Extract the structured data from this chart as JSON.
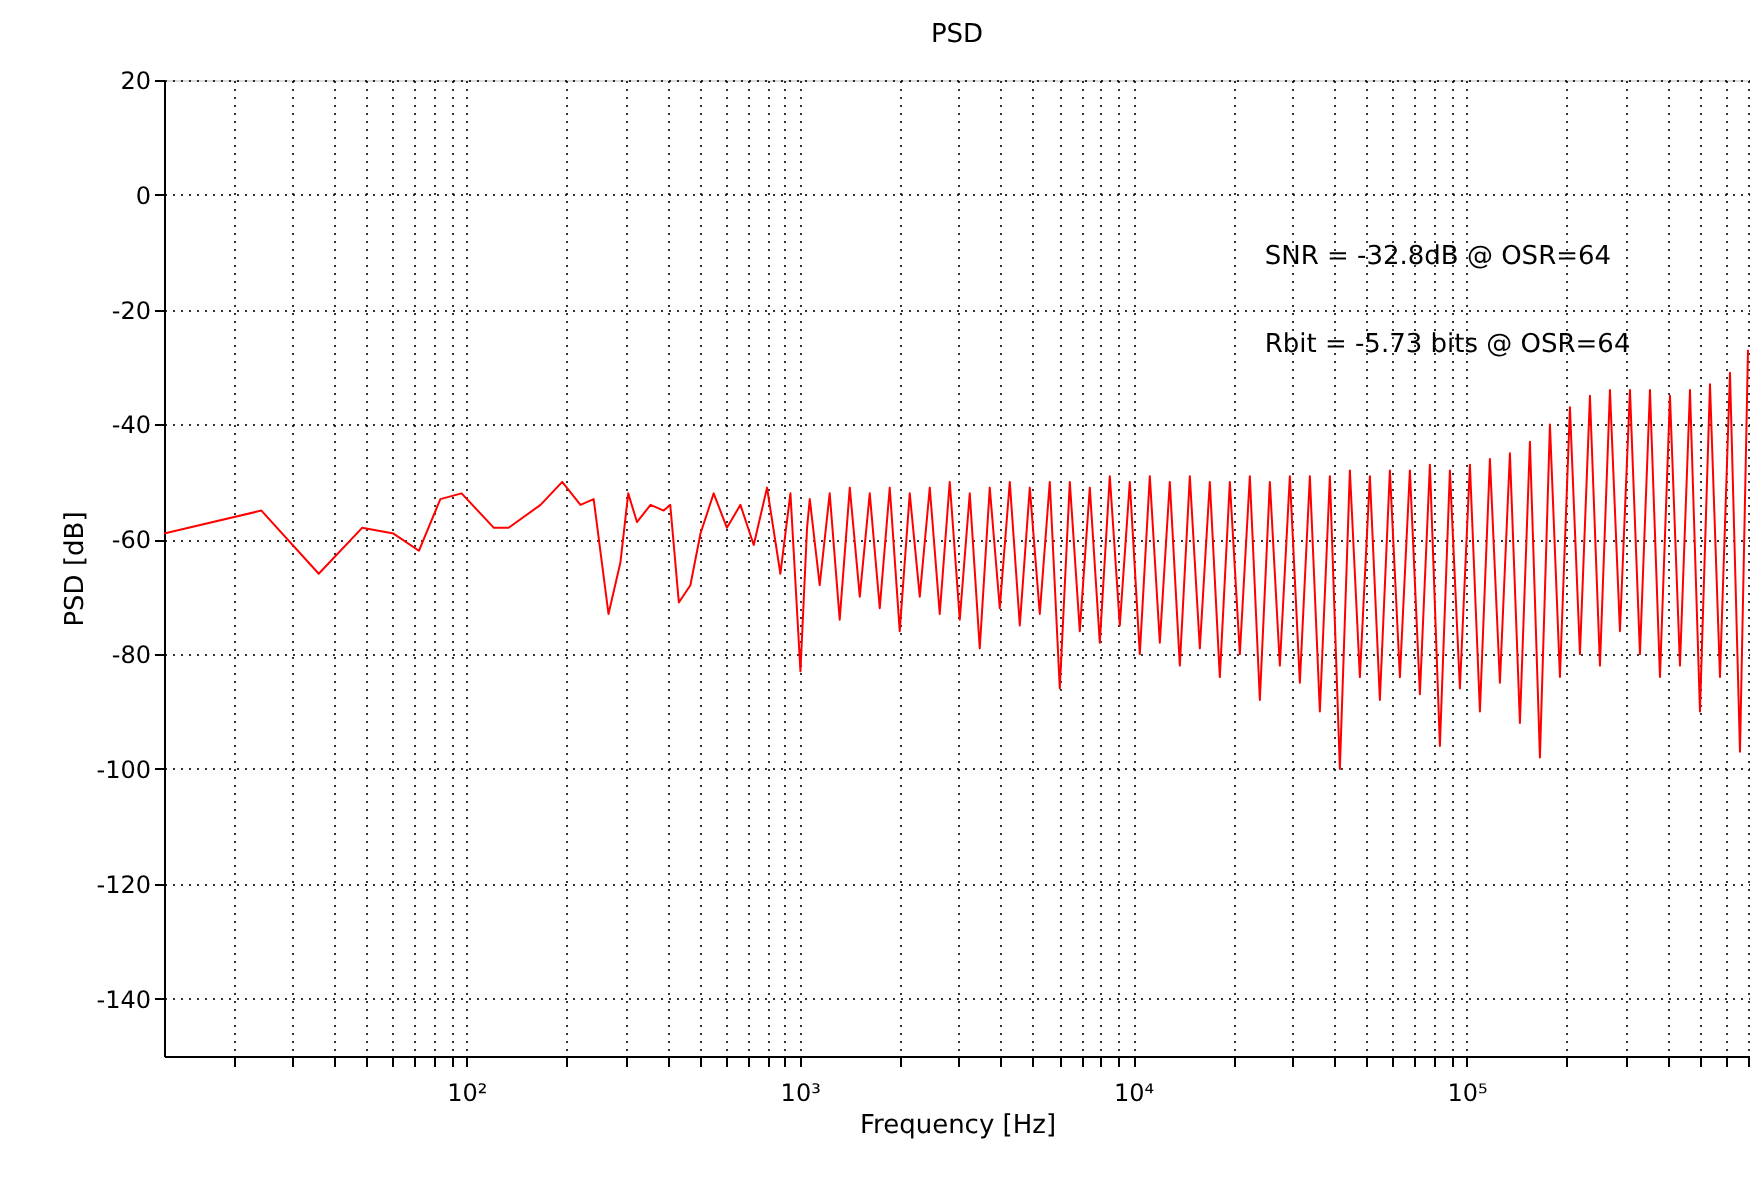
{
  "chart_data": {
    "type": "line",
    "title": "PSD",
    "xlabel": "Frequency [Hz]",
    "ylabel": "PSD [dB]",
    "log": "x",
    "grid": true,
    "marker": "none",
    "line_style": "solid",
    "annotations": [
      "SNR = -32.8dB @ OSR=64",
      "Rbit = -5.73 bits @ OSR=64"
    ],
    "xlim": [
      12.4,
      708000
    ],
    "ylim": [
      -150,
      20
    ],
    "yticks": [
      -140,
      -120,
      -100,
      -80,
      -60,
      -40,
      -20,
      0,
      20
    ],
    "xticks": [
      {
        "value": 20,
        "label": null
      },
      {
        "value": 30,
        "label": null
      },
      {
        "value": 40,
        "label": null
      },
      {
        "value": 50,
        "label": null
      },
      {
        "value": 60,
        "label": null
      },
      {
        "value": 70,
        "label": null
      },
      {
        "value": 80,
        "label": null
      },
      {
        "value": 90,
        "label": null
      },
      {
        "value": 100,
        "label": "10²"
      },
      {
        "value": 200,
        "label": null
      },
      {
        "value": 300,
        "label": null
      },
      {
        "value": 400,
        "label": null
      },
      {
        "value": 500,
        "label": null
      },
      {
        "value": 600,
        "label": null
      },
      {
        "value": 700,
        "label": null
      },
      {
        "value": 800,
        "label": null
      },
      {
        "value": 900,
        "label": null
      },
      {
        "value": 1000,
        "label": "10³"
      },
      {
        "value": 2000,
        "label": null
      },
      {
        "value": 3000,
        "label": null
      },
      {
        "value": 4000,
        "label": null
      },
      {
        "value": 5000,
        "label": null
      },
      {
        "value": 6000,
        "label": null
      },
      {
        "value": 7000,
        "label": null
      },
      {
        "value": 8000,
        "label": null
      },
      {
        "value": 9000,
        "label": null
      },
      {
        "value": 10000,
        "label": "10⁴"
      },
      {
        "value": 20000,
        "label": null
      },
      {
        "value": 30000,
        "label": null
      },
      {
        "value": 40000,
        "label": null
      },
      {
        "value": 50000,
        "label": null
      },
      {
        "value": 60000,
        "label": null
      },
      {
        "value": 70000,
        "label": null
      },
      {
        "value": 80000,
        "label": null
      },
      {
        "value": 90000,
        "label": null
      },
      {
        "value": 100000,
        "label": "10⁵"
      },
      {
        "value": 200000,
        "label": null
      },
      {
        "value": 300000,
        "label": null
      },
      {
        "value": 400000,
        "label": null
      },
      {
        "value": 500000,
        "label": null
      },
      {
        "value": 600000,
        "label": null
      },
      {
        "value": 700000,
        "label": null
      }
    ],
    "series": [
      {
        "color": "#ff0000",
        "x": [
          12.4,
          24.3,
          36.1,
          48.7,
          60.5,
          72.1,
          83.6,
          96.8,
          121,
          134,
          167,
          194,
          220,
          241,
          267,
          290,
          306,
          325,
          357,
          391,
          409,
          434,
          470,
          504,
          552,
          605,
          664,
          728,
          798,
          875,
          938,
          1005,
          1052,
          1072,
          1148,
          1230,
          1318,
          1413,
          1514,
          1622,
          1738,
          1862,
          1995,
          2138,
          2291,
          2455,
          2630,
          2818,
          3020,
          3236,
          3467,
          3715,
          3981,
          4266,
          4571,
          4898,
          5248,
          5623,
          6026,
          6457,
          6918,
          7413,
          7943,
          8511,
          9120,
          9772,
          10471,
          11220,
          12023,
          12882,
          13804,
          14791,
          15849,
          16982,
          18197,
          19498,
          20893,
          22387,
          23988,
          25704,
          27542,
          29512,
          31623,
          33884,
          36308,
          38905,
          41687,
          44668,
          47863,
          51286,
          54954,
          58884,
          63096,
          67608,
          72444,
          77625,
          83176,
          89125,
          95499,
          102329,
          109648,
          117490,
          125893,
          134896,
          144544,
          154882,
          165959,
          177828,
          190546,
          204174,
          218776,
          234423,
          251189,
          269153,
          288403,
          309030,
          331131,
          354813,
          380189,
          407380,
          436516,
          467735,
          501187,
          537032,
          575440,
          616595,
          660693,
          698232
        ],
        "values": [
          -59,
          -55,
          -66,
          -58,
          -59,
          -62,
          -53,
          -52,
          -58,
          -58,
          -54,
          -50,
          -54,
          -53,
          -73,
          -64,
          -52,
          -57,
          -54,
          -55,
          -54,
          -71,
          -68,
          -59,
          -52,
          -58,
          -54,
          -61,
          -51,
          -66,
          -52,
          -83,
          -58,
          -53,
          -68,
          -52,
          -74,
          -51,
          -70,
          -52,
          -72,
          -51,
          -76,
          -52,
          -70,
          -51,
          -73,
          -50,
          -74,
          -52,
          -79,
          -51,
          -72,
          -50,
          -75,
          -51,
          -73,
          -50,
          -86,
          -50,
          -76,
          -51,
          -78,
          -49,
          -75,
          -50,
          -80,
          -49,
          -78,
          -50,
          -82,
          -49,
          -79,
          -50,
          -84,
          -50,
          -80,
          -49,
          -88,
          -50,
          -82,
          -49,
          -85,
          -49,
          -90,
          -49,
          -100,
          -48,
          -84,
          -49,
          -88,
          -48,
          -84,
          -48,
          -87,
          -47,
          -96,
          -48,
          -86,
          -47,
          -90,
          -46,
          -85,
          -45,
          -92,
          -43,
          -98,
          -40,
          -84,
          -37,
          -80,
          -35,
          -82,
          -34,
          -76,
          -34,
          -80,
          -34,
          -84,
          -35,
          -82,
          -34,
          -90,
          -33,
          -84,
          -31,
          -97,
          -27
        ]
      }
    ]
  }
}
